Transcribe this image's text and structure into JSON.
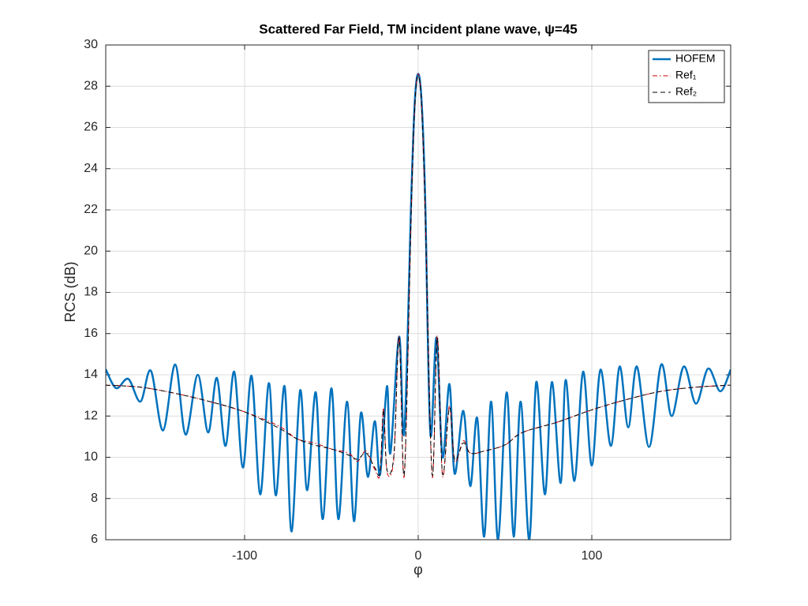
{
  "chart_data": {
    "type": "line",
    "title": "Scattered Far Field, TM incident plane wave, ψ=45",
    "xlabel": "φ",
    "ylabel": "RCS (dB)",
    "xlim": [
      -180,
      180
    ],
    "xticks": [
      -100,
      0,
      100
    ],
    "ylim": [
      6,
      30
    ],
    "yticks": [
      6,
      8,
      10,
      12,
      14,
      16,
      18,
      20,
      22,
      24,
      26,
      28,
      30
    ],
    "grid": true,
    "legend": "top-right",
    "series": [
      {
        "name": "HOFEM",
        "color": "#0072bd",
        "dash": "solid",
        "x": [
          -180,
          -174,
          -167,
          -160,
          -154,
          -147,
          -140,
          -134,
          -127,
          -121,
          -116,
          -111,
          -106,
          -101,
          -96,
          -91,
          -86,
          -82,
          -77,
          -73,
          -68,
          -64,
          -59,
          -55,
          -50,
          -46,
          -41,
          -37,
          -33,
          -29,
          -25,
          -22,
          -18,
          -16,
          -11,
          -8,
          -4,
          -2,
          0,
          2,
          4,
          7,
          10.5,
          14,
          18,
          21,
          26,
          30,
          34,
          38,
          42,
          46,
          51,
          55,
          59,
          64,
          68,
          73,
          77,
          82,
          85,
          90,
          95,
          100,
          105,
          111,
          116,
          121,
          126,
          133,
          140,
          146,
          153,
          160,
          167,
          174,
          180
        ],
        "values": [
          14.27,
          13.35,
          13.8,
          12.7,
          14.2,
          11.3,
          14.5,
          11.1,
          14.0,
          11.2,
          13.85,
          10.55,
          14.15,
          9.5,
          13.95,
          8.2,
          13.6,
          8.15,
          13.45,
          6.4,
          13.25,
          8.4,
          13.15,
          7.0,
          13.35,
          7.0,
          12.7,
          6.9,
          12.15,
          9.05,
          11.75,
          9.15,
          13.45,
          10.2,
          15.85,
          11.2,
          22.6,
          27.2,
          28.6,
          27.2,
          22.6,
          11.15,
          15.8,
          10.0,
          13.55,
          9.2,
          12.25,
          8.6,
          11.9,
          6.15,
          12.7,
          6.0,
          13.15,
          6.15,
          12.7,
          6.0,
          13.65,
          8.2,
          13.65,
          8.75,
          13.75,
          8.85,
          14.15,
          9.6,
          14.25,
          10.55,
          14.4,
          11.45,
          14.4,
          10.5,
          14.5,
          12.0,
          14.4,
          12.6,
          14.3,
          13.2,
          14.25
        ]
      },
      {
        "name": "Ref₁",
        "color": "#d00000",
        "dash": "dashdot",
        "x": [
          -180,
          -160,
          -140,
          -120,
          -100,
          -80,
          -70,
          -60,
          -50,
          -40,
          -35,
          -30,
          -25,
          -22,
          -20,
          -18,
          -14,
          -11,
          -8,
          -4,
          -2,
          0,
          2,
          4,
          8,
          11,
          14,
          18,
          21,
          26,
          30,
          38,
          50,
          60,
          80,
          100,
          120,
          140,
          160,
          180
        ],
        "values": [
          13.5,
          13.4,
          13.1,
          12.7,
          12.2,
          11.5,
          10.9,
          10.7,
          10.4,
          10.2,
          9.8,
          10.3,
          9.4,
          9.2,
          12.4,
          9.3,
          10.0,
          15.9,
          9.1,
          22.0,
          27.0,
          28.6,
          27.0,
          22.0,
          9.1,
          15.9,
          9.1,
          12.5,
          9.8,
          10.8,
          10.2,
          10.3,
          10.6,
          11.2,
          11.7,
          12.3,
          12.8,
          13.2,
          13.4,
          13.5
        ]
      },
      {
        "name": "Ref₂",
        "color": "#000000",
        "dash": "dashed",
        "x": [
          -180,
          -160,
          -140,
          -120,
          -100,
          -80,
          -70,
          -60,
          -50,
          -40,
          -35,
          -30,
          -25,
          -22,
          -20,
          -18,
          -14,
          -11,
          -8,
          -4,
          -2,
          0,
          2,
          4,
          8,
          11,
          14,
          18,
          21,
          26,
          30,
          38,
          50,
          60,
          80,
          100,
          120,
          140,
          160,
          180
        ],
        "values": [
          13.5,
          13.4,
          13.1,
          12.7,
          12.2,
          11.4,
          10.9,
          10.6,
          10.4,
          10.1,
          9.9,
          10.2,
          9.5,
          9.3,
          12.3,
          9.4,
          10.1,
          15.8,
          9.2,
          22.0,
          27.0,
          28.5,
          27.0,
          22.0,
          9.2,
          15.8,
          9.2,
          12.4,
          9.9,
          10.7,
          10.2,
          10.3,
          10.6,
          11.2,
          11.7,
          12.3,
          12.8,
          13.2,
          13.4,
          13.5
        ]
      }
    ]
  }
}
